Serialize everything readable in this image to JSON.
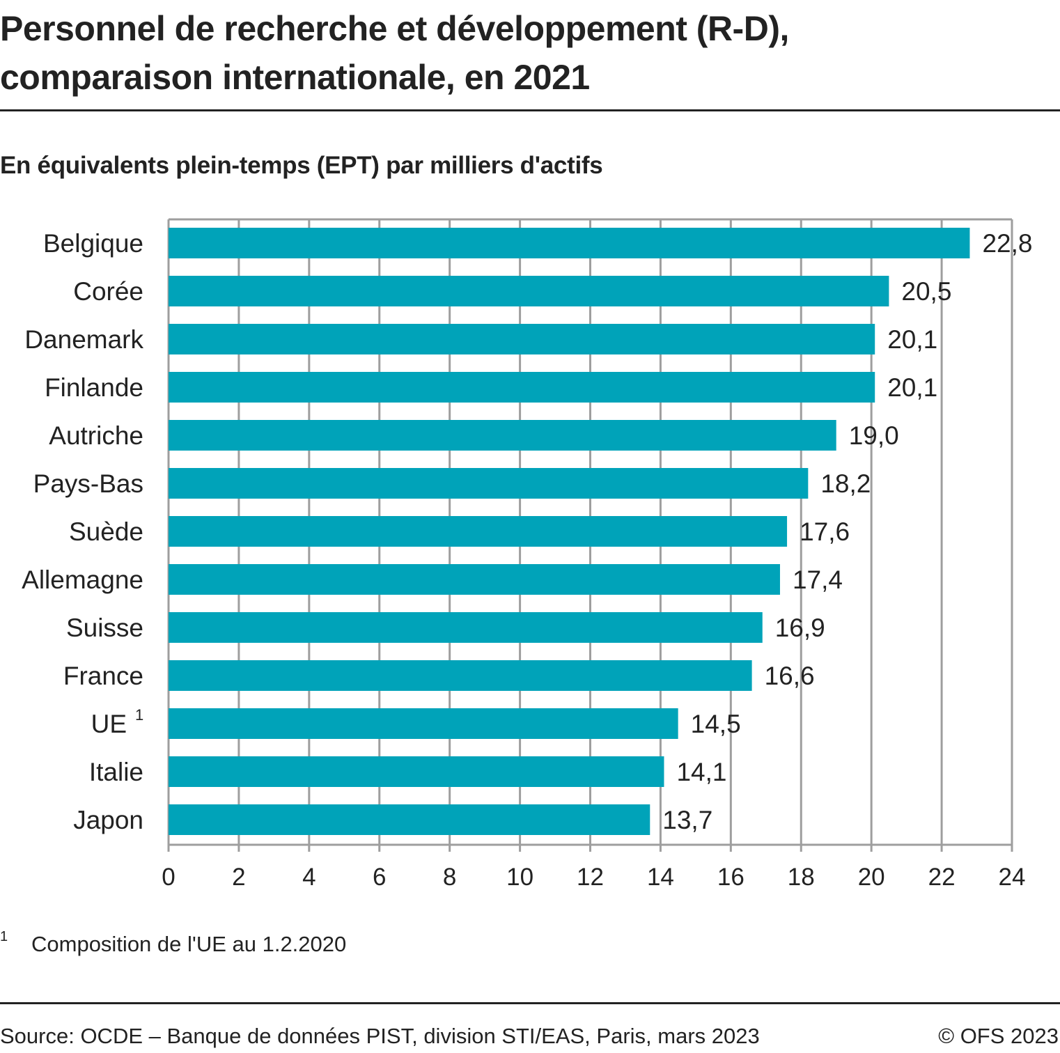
{
  "title": "Personnel de recherche et développement (R-D), comparaison internationale, en 2021",
  "title_lines": [
    "Personnel de recherche et développement (R-D),",
    "comparaison internationale, en 2021"
  ],
  "subtitle": "En équivalents plein-temps (EPT) par milliers d'actifs",
  "footnote": {
    "mark": "1",
    "text": "Composition de l'UE au 1.2.2020"
  },
  "source": "Source: OCDE – Banque de données PIST, division STI/EAS, Paris, mars 2023",
  "copyright": "© OFS 2023",
  "colors": {
    "bar": "#00a3b9",
    "grid": "#9e9e9e",
    "text": "#222222"
  },
  "chart_data": {
    "type": "bar",
    "orientation": "horizontal",
    "title": "Personnel de recherche et développement (R-D), comparaison internationale, en 2021",
    "subtitle": "En équivalents plein-temps (EPT) par milliers d'actifs",
    "xlabel": "",
    "ylabel": "",
    "categories": [
      "Belgique",
      "Corée",
      "Danemark",
      "Finlande",
      "Autriche",
      "Pays-Bas",
      "Suède",
      "Allemagne",
      "Suisse",
      "France",
      "UE",
      "Italie",
      "Japon"
    ],
    "category_superscripts": [
      "",
      "",
      "",
      "",
      "",
      "",
      "",
      "",
      "",
      "",
      "1",
      "",
      ""
    ],
    "values": [
      22.8,
      20.5,
      20.1,
      20.1,
      19.0,
      18.2,
      17.6,
      17.4,
      16.9,
      16.6,
      14.5,
      14.1,
      13.7
    ],
    "value_labels": [
      "22,8",
      "20,5",
      "20,1",
      "20,1",
      "19,0",
      "18,2",
      "17,6",
      "17,4",
      "16,9",
      "16,6",
      "14,5",
      "14,1",
      "13,7"
    ],
    "xlim": [
      0,
      24
    ],
    "xticks": [
      0,
      2,
      4,
      6,
      8,
      10,
      12,
      14,
      16,
      18,
      20,
      22,
      24
    ],
    "xtick_labels": [
      "0",
      "2",
      "4",
      "6",
      "8",
      "10",
      "12",
      "14",
      "16",
      "18",
      "20",
      "22",
      "24"
    ],
    "grid": true,
    "legend": "none"
  }
}
